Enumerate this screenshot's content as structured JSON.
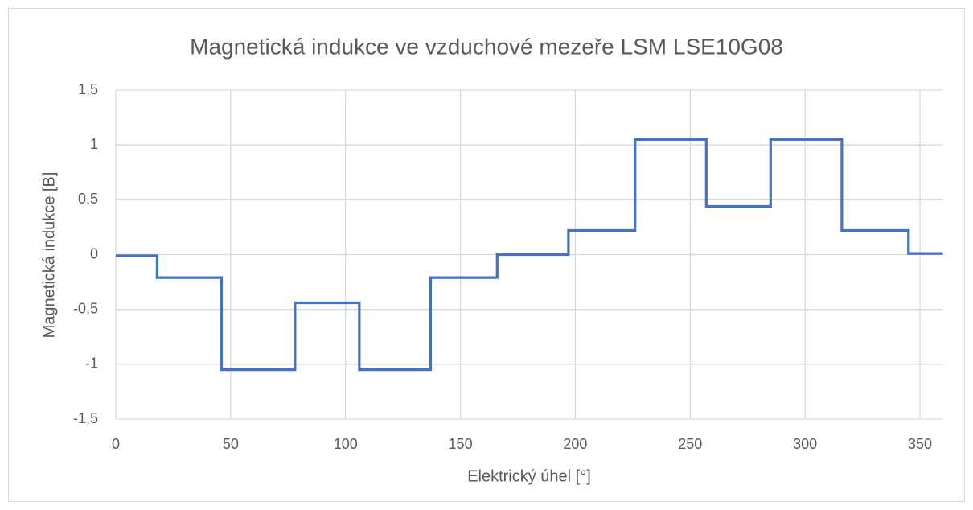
{
  "chart_data": {
    "type": "line",
    "step": "post",
    "title": "Magnetická indukce ve vzduchové mezeře  LSM LSE10G08",
    "xlabel": "Elektrický úhel [°]",
    "ylabel": "Magnetická indukce [B]",
    "x": [
      0,
      18,
      46,
      78,
      106,
      137,
      166,
      197,
      226,
      257,
      285,
      316,
      345,
      360
    ],
    "series": [
      {
        "name": "B",
        "color": "#4472c4",
        "values": [
          -0.01,
          -0.21,
          -1.05,
          -0.44,
          -1.05,
          -0.21,
          0,
          0.22,
          1.05,
          0.44,
          1.05,
          0.22,
          0.01,
          0.01
        ]
      }
    ],
    "xlim": [
      0,
      360
    ],
    "xticks": [
      0,
      50,
      100,
      150,
      200,
      250,
      300,
      350
    ],
    "ylim": [
      -1.5,
      1.5
    ],
    "yticks": [
      {
        "value": -1.5,
        "label": "-1,5"
      },
      -1,
      {
        "value": -0.5,
        "label": "-0,5"
      },
      0,
      {
        "value": 0.5,
        "label": "0,5"
      },
      1,
      {
        "value": 1.5,
        "label": "1,5"
      }
    ],
    "grid": true
  }
}
